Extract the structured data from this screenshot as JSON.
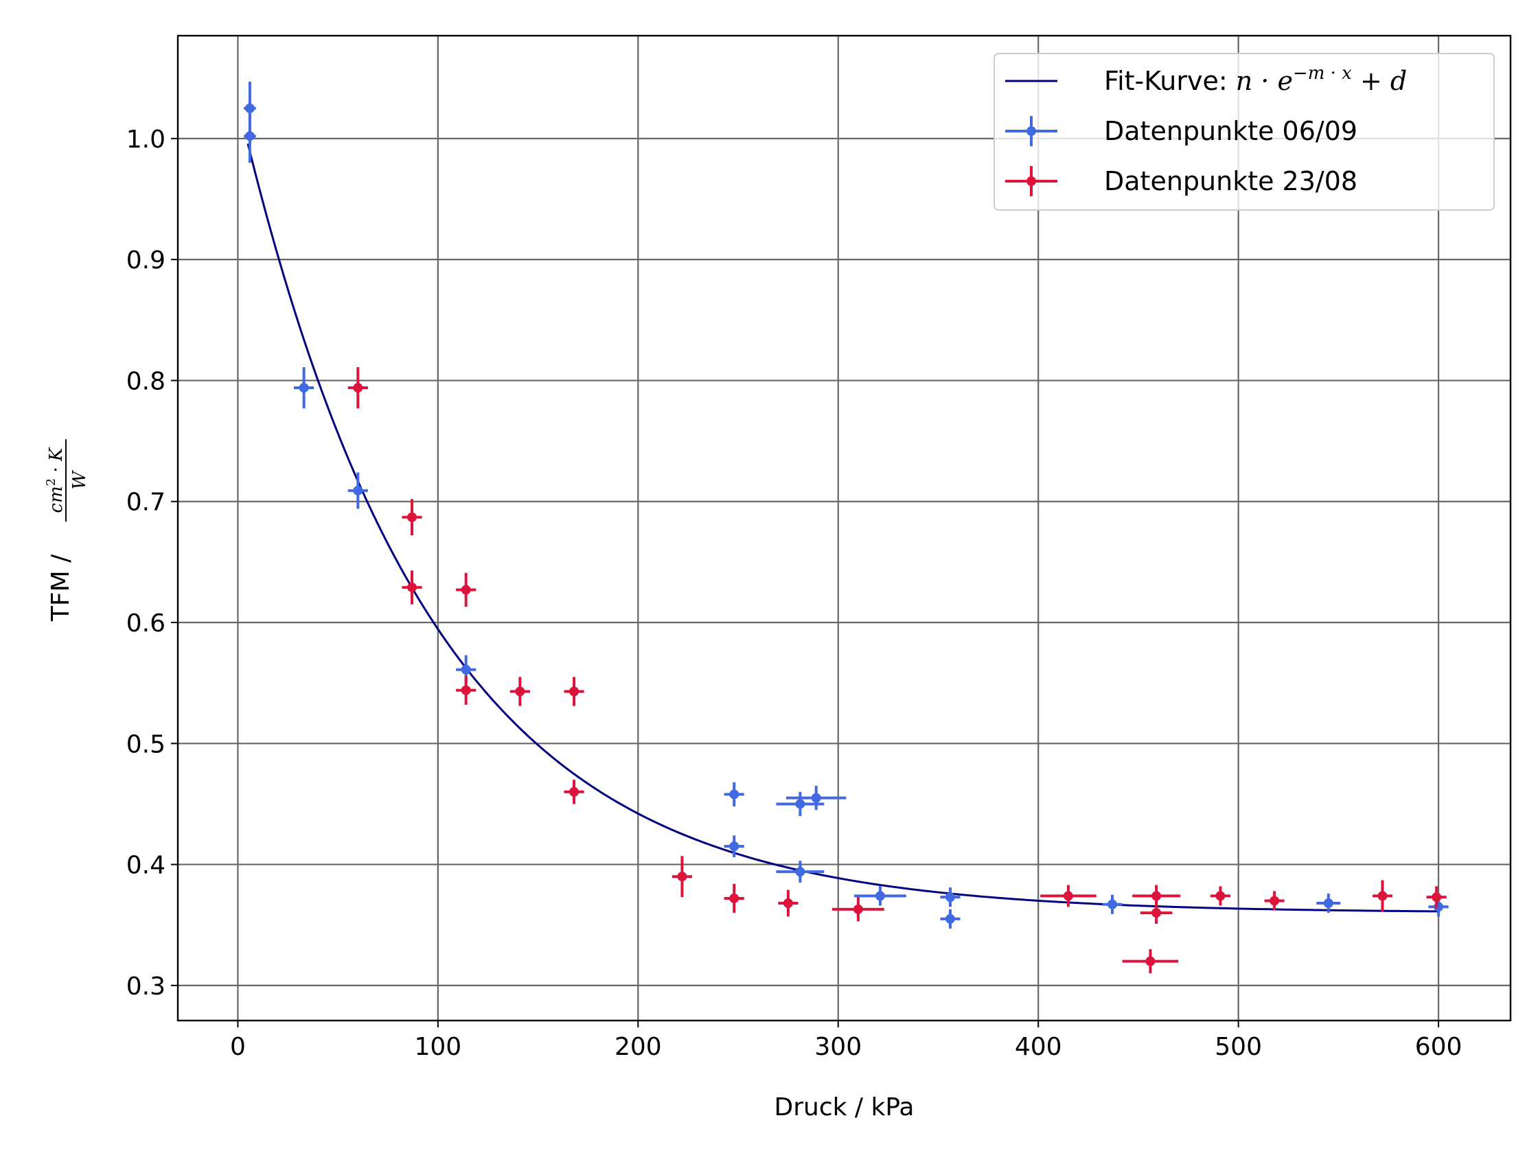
{
  "chart_data": {
    "type": "scatter",
    "xlabel": "Druck / kPa",
    "ylabel": {
      "prefix": "TFM / ",
      "numerator": "cm",
      "numerator_exp": "2",
      "numerator_rest": " · K",
      "denominator": "W"
    },
    "xlim": [
      -30,
      636
    ],
    "ylim": [
      0.271,
      1.085
    ],
    "xticks": [
      0,
      100,
      200,
      300,
      400,
      500,
      600
    ],
    "yticks": [
      0.3,
      0.4,
      0.5,
      0.6,
      0.7,
      0.8,
      0.9,
      1.0
    ],
    "xtick_labels": [
      "0",
      "100",
      "200",
      "300",
      "400",
      "500",
      "600"
    ],
    "ytick_labels": [
      "0.3",
      "0.4",
      "0.5",
      "0.6",
      "0.7",
      "0.8",
      "0.9",
      "1.0"
    ],
    "grid": true,
    "legend_position": "top-right",
    "fit": {
      "name": "Fit-Kurve: n · e^(−m · x) + d",
      "label_parts": {
        "prefix": "Fit-Kurve: ",
        "base": "n · e",
        "exp": "−m · x",
        "suffix": " + d"
      },
      "color": "#000080",
      "params": {
        "n": 0.67,
        "m": 0.0105,
        "d": 0.36
      },
      "x_range": [
        5,
        600
      ]
    },
    "series": [
      {
        "name": "Datenpunkte 06/09",
        "color": "#4169e1",
        "points": [
          {
            "x": 6,
            "y": 1.025,
            "xerr": 3,
            "yerr": 0.022
          },
          {
            "x": 6,
            "y": 1.002,
            "xerr": 3,
            "yerr": 0.022
          },
          {
            "x": 33,
            "y": 0.794,
            "xerr": 5,
            "yerr": 0.017
          },
          {
            "x": 60,
            "y": 0.709,
            "xerr": 5,
            "yerr": 0.015
          },
          {
            "x": 114,
            "y": 0.561,
            "xerr": 5,
            "yerr": 0.012
          },
          {
            "x": 248,
            "y": 0.458,
            "xerr": 5,
            "yerr": 0.01
          },
          {
            "x": 248,
            "y": 0.415,
            "xerr": 5,
            "yerr": 0.009
          },
          {
            "x": 281,
            "y": 0.45,
            "xerr": 12,
            "yerr": 0.01
          },
          {
            "x": 289,
            "y": 0.455,
            "xerr": 15,
            "yerr": 0.01
          },
          {
            "x": 281,
            "y": 0.394,
            "xerr": 12,
            "yerr": 0.009
          },
          {
            "x": 321,
            "y": 0.374,
            "xerr": 13,
            "yerr": 0.008
          },
          {
            "x": 356,
            "y": 0.373,
            "xerr": 5,
            "yerr": 0.008
          },
          {
            "x": 356,
            "y": 0.355,
            "xerr": 5,
            "yerr": 0.008
          },
          {
            "x": 437,
            "y": 0.367,
            "xerr": 5,
            "yerr": 0.008
          },
          {
            "x": 545,
            "y": 0.368,
            "xerr": 6,
            "yerr": 0.008
          },
          {
            "x": 600,
            "y": 0.365,
            "xerr": 5,
            "yerr": 0.008
          }
        ]
      },
      {
        "name": "Datenpunkte 23/08",
        "color": "#dc143c",
        "points": [
          {
            "x": 60,
            "y": 0.794,
            "xerr": 5,
            "yerr": 0.017
          },
          {
            "x": 87,
            "y": 0.687,
            "xerr": 5,
            "yerr": 0.015
          },
          {
            "x": 87,
            "y": 0.629,
            "xerr": 5,
            "yerr": 0.014
          },
          {
            "x": 114,
            "y": 0.627,
            "xerr": 5,
            "yerr": 0.014
          },
          {
            "x": 114,
            "y": 0.544,
            "xerr": 5,
            "yerr": 0.012
          },
          {
            "x": 141,
            "y": 0.543,
            "xerr": 5,
            "yerr": 0.012
          },
          {
            "x": 168,
            "y": 0.543,
            "xerr": 5,
            "yerr": 0.012
          },
          {
            "x": 168,
            "y": 0.46,
            "xerr": 5,
            "yerr": 0.01
          },
          {
            "x": 222,
            "y": 0.39,
            "xerr": 5,
            "yerr": 0.017
          },
          {
            "x": 248,
            "y": 0.372,
            "xerr": 5,
            "yerr": 0.012
          },
          {
            "x": 275,
            "y": 0.368,
            "xerr": 5,
            "yerr": 0.011
          },
          {
            "x": 310,
            "y": 0.363,
            "xerr": 13,
            "yerr": 0.01
          },
          {
            "x": 415,
            "y": 0.374,
            "xerr": 14,
            "yerr": 0.009
          },
          {
            "x": 459,
            "y": 0.374,
            "xerr": 12,
            "yerr": 0.009
          },
          {
            "x": 459,
            "y": 0.36,
            "xerr": 8,
            "yerr": 0.009
          },
          {
            "x": 456,
            "y": 0.32,
            "xerr": 14,
            "yerr": 0.01
          },
          {
            "x": 491,
            "y": 0.374,
            "xerr": 5,
            "yerr": 0.008
          },
          {
            "x": 518,
            "y": 0.37,
            "xerr": 5,
            "yerr": 0.008
          },
          {
            "x": 572,
            "y": 0.374,
            "xerr": 5,
            "yerr": 0.013
          },
          {
            "x": 599,
            "y": 0.373,
            "xerr": 5,
            "yerr": 0.009
          }
        ]
      }
    ]
  }
}
